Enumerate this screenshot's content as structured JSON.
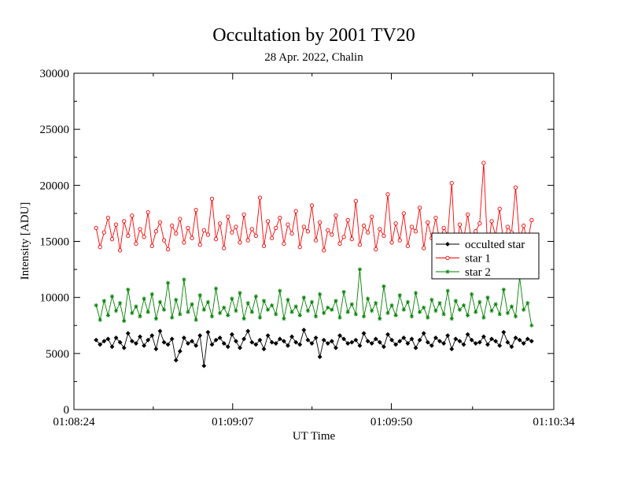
{
  "chart_data": {
    "type": "line",
    "title": "Occultation by 2001 TV20",
    "subtitle": "28 Apr. 2022, Chalin",
    "xlabel": "UT Time",
    "ylabel": "Intensity [ADU]",
    "xlim": [
      "01:08:24",
      "01:10:34"
    ],
    "ylim": [
      0,
      30000
    ],
    "x_ticks": [
      "01:08:24",
      "01:09:07",
      "01:09:50",
      "01:10:34"
    ],
    "y_ticks": [
      "0",
      "5000",
      "10000",
      "15000",
      "20000",
      "25000",
      "30000"
    ],
    "x_range": [
      "01:08:30",
      "01:10:28"
    ],
    "grid": false,
    "legend_position": "right",
    "series": [
      {
        "name": "occulted star",
        "color": "#000000",
        "marker": "diamond",
        "mean": 6000,
        "spread": 600,
        "values": [
          6200,
          5800,
          6100,
          6300,
          5600,
          6400,
          6000,
          5500,
          6800,
          6100,
          5900,
          6500,
          5700,
          6200,
          6600,
          5400,
          7000,
          6000,
          5800,
          6300,
          4400,
          5200,
          6400,
          5900,
          6100,
          5700,
          6600,
          3900,
          6900,
          5800,
          6200,
          6400,
          5900,
          5600,
          6700,
          6100,
          5500,
          6300,
          7000,
          6000,
          5800,
          6200,
          5400,
          6600,
          6000,
          5900,
          6300,
          6100,
          5700,
          6500,
          6000,
          5800,
          7100,
          6200,
          5900,
          6400,
          4700,
          6200,
          5900,
          6100,
          5500,
          6600,
          6300,
          5900,
          6000,
          6200,
          5700,
          6800,
          6100,
          5900,
          6300,
          6000,
          5600,
          6700,
          6200,
          5800,
          6100,
          6400,
          5900,
          6300,
          5500,
          6200,
          6800,
          6000,
          5700,
          6400,
          6100,
          5900,
          6600,
          5400,
          6300,
          6100,
          5800,
          6700,
          6200,
          5900,
          6000,
          6500,
          5800,
          6300,
          6100,
          5700,
          6900,
          6000,
          5600,
          6400,
          6200,
          5900,
          6300,
          6100
        ]
      },
      {
        "name": "star 1",
        "color": "#ff0000",
        "marker": "circle",
        "mean": 15500,
        "spread": 1200,
        "values": [
          16200,
          14500,
          15800,
          17100,
          15200,
          16500,
          14200,
          16800,
          15500,
          17300,
          14800,
          16100,
          15400,
          17600,
          14600,
          15900,
          16700,
          15100,
          14300,
          16400,
          15700,
          17000,
          14900,
          16200,
          15300,
          17800,
          14700,
          16000,
          15600,
          18800,
          15200,
          16600,
          14400,
          17200,
          15800,
          16300,
          14900,
          17400,
          15100,
          16100,
          15500,
          18900,
          14600,
          16800,
          15300,
          16200,
          17100,
          14800,
          16500,
          15700,
          17700,
          14500,
          16300,
          15900,
          18200,
          15100,
          16700,
          14200,
          16000,
          15600,
          17300,
          14800,
          15400,
          16900,
          15200,
          18600,
          14700,
          16400,
          15800,
          17200,
          14300,
          16100,
          15500,
          19200,
          14900,
          16600,
          15100,
          17500,
          14600,
          16300,
          15900,
          18000,
          14400,
          16700,
          15300,
          17100,
          15000,
          16200,
          15600,
          20200,
          13200,
          16500,
          15200,
          17400,
          14800,
          15900,
          16600,
          22000,
          14100,
          16800,
          15500,
          17900,
          14700,
          16300,
          15800,
          19800,
          15100,
          16400,
          14900,
          16900
        ]
      },
      {
        "name": "star 2",
        "color": "#008000",
        "marker": "star",
        "mean": 9000,
        "spread": 900,
        "values": [
          9300,
          8000,
          9700,
          8400,
          10100,
          8800,
          9500,
          7900,
          10700,
          8600,
          9200,
          8300,
          9900,
          8700,
          10300,
          8100,
          9600,
          8900,
          11300,
          8200,
          9800,
          8500,
          11600,
          8700,
          9400,
          8000,
          10200,
          8900,
          9600,
          8300,
          10800,
          8600,
          9100,
          8400,
          9900,
          8800,
          10400,
          8100,
          9500,
          8700,
          10100,
          8200,
          9700,
          8900,
          9300,
          8500,
          10600,
          8100,
          9800,
          8700,
          9200,
          8400,
          10000,
          8800,
          9600,
          8300,
          10300,
          8600,
          9100,
          8900,
          9700,
          8200,
          10500,
          8700,
          9400,
          8500,
          12500,
          8300,
          9900,
          8800,
          9500,
          8100,
          11000,
          8600,
          9300,
          8400,
          10200,
          8900,
          9600,
          8300,
          10400,
          8700,
          9100,
          8200,
          9800,
          8800,
          9500,
          8500,
          10600,
          8100,
          9700,
          8900,
          9300,
          8400,
          10300,
          8700,
          9600,
          8200,
          10000,
          8800,
          9400,
          8500,
          10700,
          8600,
          9200,
          8300,
          11800,
          8900,
          9500,
          7500
        ]
      }
    ]
  }
}
